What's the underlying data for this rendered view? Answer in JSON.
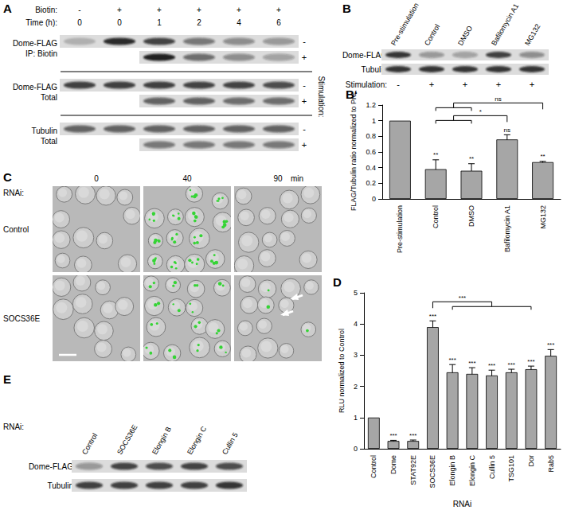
{
  "panels": {
    "A": {
      "label": "A",
      "header": [
        {
          "label": "Biotin:",
          "values": [
            "-",
            "+",
            "+",
            "+",
            "+",
            "+"
          ]
        },
        {
          "label": "Time (h):",
          "values": [
            0,
            0,
            1,
            2,
            4,
            6
          ]
        }
      ],
      "side_label": "Stimulation:",
      "blots": [
        {
          "name": "Dome-FLAG",
          "detail": "IP: Biotin",
          "rows": [
            {
              "stimulation": "-",
              "bands": [
                0.2,
                0.9,
                0.75,
                0.5,
                0.4,
                0.35
              ]
            },
            {
              "stimulation": "+",
              "bands": [
                null,
                null,
                0.95,
                0.55,
                0.4,
                0.3
              ]
            }
          ]
        },
        {
          "name": "Dome-FLAG",
          "detail": "Total",
          "rows": [
            {
              "stimulation": "-",
              "bands": [
                0.8,
                0.8,
                0.8,
                0.75,
                0.75,
                0.7
              ]
            },
            {
              "stimulation": "+",
              "bands": [
                null,
                null,
                0.6,
                0.6,
                0.55,
                0.55
              ]
            }
          ]
        },
        {
          "name": "Tubulin",
          "detail": "Total",
          "rows": [
            {
              "stimulation": "-",
              "bands": [
                0.6,
                0.6,
                0.6,
                0.6,
                0.6,
                0.6
              ]
            },
            {
              "stimulation": "+",
              "bands": [
                null,
                null,
                0.5,
                0.5,
                0.5,
                0.5
              ]
            }
          ]
        }
      ]
    },
    "B": {
      "label": "B",
      "lanes": [
        "Pre-stimulation",
        "Control",
        "DMSO",
        "Bafilomycin A1",
        "MG132"
      ],
      "blots": [
        {
          "name": "Dome-FLAG",
          "bands": [
            0.85,
            0.35,
            0.3,
            0.8,
            0.4
          ]
        },
        {
          "name": "Tubulin",
          "bands": [
            0.85,
            0.85,
            0.85,
            0.85,
            0.85
          ]
        }
      ],
      "stimulation": {
        "label": "Stimulation:",
        "values": [
          "-",
          "+",
          "+",
          "+",
          "+"
        ]
      }
    },
    "C": {
      "label": "C",
      "row_title": "RNAi:",
      "rows": [
        "Control",
        "SOCS36E"
      ],
      "time_points": [
        0,
        40,
        90
      ],
      "time_unit": "min"
    },
    "E": {
      "label": "E",
      "row_title": "RNAi:",
      "lanes": [
        "Control",
        "SOCS36E",
        "Elongin B",
        "Elongin C",
        "Cullin 5"
      ],
      "blots": [
        {
          "name": "Dome-FLAG",
          "bands": [
            0.35,
            0.75,
            0.7,
            0.75,
            0.7
          ]
        },
        {
          "name": "Tubulin",
          "bands": [
            0.8,
            0.8,
            0.8,
            0.8,
            0.85
          ]
        }
      ]
    }
  },
  "chart_data": [
    {
      "type": "bar",
      "panel_label": "B‘",
      "y_label": "FLAG/Tubulin ratio normalized to Pre",
      "categories": [
        "Pre-stimulation",
        "Control",
        "DMSO",
        "Bafilomycin A1",
        "MG132"
      ],
      "values": [
        1,
        0.38,
        0.36,
        0.76,
        0.47
      ],
      "errors": [
        0,
        0.12,
        0.09,
        0.06,
        0.01
      ],
      "significance": [
        null,
        "**",
        "**",
        "ns",
        "**"
      ],
      "comparisons": [
        {
          "from": [
            "Control",
            "DMSO"
          ],
          "to": [
            "Bafilomycin A1"
          ],
          "label": "*"
        },
        {
          "from": [
            "Control",
            "DMSO"
          ],
          "to": [
            "MG132"
          ],
          "label": "ns"
        }
      ],
      "color": "#a6a6a6",
      "ylim": [
        0,
        1.2
      ],
      "yticks": [
        0,
        0.2,
        0.4,
        0.6,
        0.8,
        1,
        1.2
      ],
      "grid": false
    },
    {
      "type": "bar",
      "panel_label": "D",
      "y_label": "RLU normalized to Control",
      "x_label": "RNAi",
      "categories": [
        "Control",
        "Dome",
        "STAT92E",
        "SOCS36E",
        "Elongin B",
        "Elongin C",
        "Cullin 5",
        "TSG101",
        "Dor",
        "Rab5"
      ],
      "values": [
        1,
        0.25,
        0.25,
        3.9,
        2.45,
        2.4,
        2.35,
        2.45,
        2.55,
        2.98
      ],
      "errors": [
        0,
        0.02,
        0.03,
        0.2,
        0.25,
        0.2,
        0.17,
        0.1,
        0.1,
        0.2
      ],
      "significance": [
        null,
        "***",
        "***",
        "***",
        "***",
        "***",
        "***",
        "***",
        "***",
        "***"
      ],
      "comparisons": [
        {
          "from": [
            "SOCS36E"
          ],
          "to": [
            "Elongin B",
            "Elongin C",
            "Cullin 5",
            "TSG101",
            "Dor"
          ],
          "label": "***"
        }
      ],
      "color": "#a6a6a6",
      "ylim": [
        0,
        5
      ],
      "yticks": [
        0,
        1,
        2,
        3,
        4,
        5
      ],
      "grid": false
    }
  ]
}
